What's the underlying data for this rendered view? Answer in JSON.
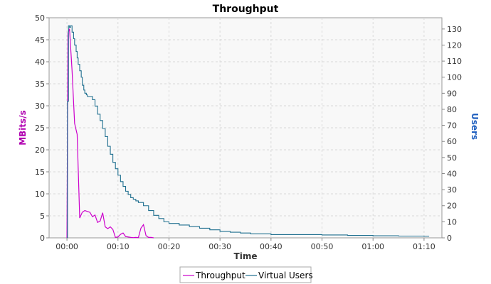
{
  "chart_data": {
    "type": "line",
    "title": "Throughput",
    "xlabel": "Time",
    "ylabel_left": "MBits/s",
    "ylabel_right": "Users",
    "x_unit": "minutes",
    "xlim": [
      -3.5,
      73.5
    ],
    "xticks": [
      "00:00",
      "00:10",
      "00:20",
      "00:30",
      "00:40",
      "00:50",
      "01:00",
      "01:10"
    ],
    "ylim_left": [
      0,
      50
    ],
    "yticks_left": [
      "0",
      "5",
      "10",
      "15",
      "20",
      "25",
      "30",
      "35",
      "40",
      "45",
      "50"
    ],
    "ylim_right": [
      0,
      137
    ],
    "yticks_right": [
      "0",
      "10",
      "20",
      "30",
      "40",
      "50",
      "60",
      "70",
      "80",
      "90",
      "100",
      "110",
      "120",
      "130"
    ],
    "grid": true,
    "legend": "bottom",
    "colors": {
      "throughput": "#cc00cc",
      "users": "#1f6f8f",
      "left_axis_label": "#b000b0",
      "right_axis_label": "#1f5fbf"
    },
    "series": [
      {
        "name": "Throughput",
        "axis": "left",
        "x": [
          0,
          0.2,
          0.5,
          1,
          1.5,
          2,
          2.5,
          3,
          3.5,
          4,
          4.5,
          5,
          5.5,
          6,
          6.5,
          7,
          7.5,
          8,
          8.5,
          9,
          9.5,
          10,
          10.5,
          11,
          11.5,
          12,
          12.5,
          13,
          13.5,
          14,
          14.5,
          15,
          15.5,
          16,
          16.5,
          17
        ],
        "y": [
          0,
          46.5,
          47.5,
          38,
          26,
          23.5,
          4.5,
          5.8,
          6.2,
          6.0,
          5.8,
          4.8,
          5.2,
          3.5,
          3.8,
          5.7,
          2.5,
          2.1,
          2.5,
          1.9,
          0.1,
          0.2,
          0.8,
          1.1,
          0.3,
          0.2,
          0.1,
          0.05,
          0.1,
          0.05,
          2.2,
          3.0,
          0.5,
          0.1,
          0.1,
          0
        ]
      },
      {
        "name": "Virtual Users",
        "axis": "right",
        "x": [
          0,
          0.1,
          0.3,
          0.5,
          0.7,
          1,
          1.3,
          1.5,
          1.8,
          2,
          2.2,
          2.5,
          2.8,
          3,
          3.3,
          3.5,
          3.8,
          4,
          4.5,
          5,
          5.5,
          6,
          6.5,
          7,
          7.5,
          8,
          8.5,
          9,
          9.5,
          10,
          10.5,
          11,
          11.5,
          12,
          12.5,
          13,
          13.5,
          14,
          15,
          16,
          17,
          18,
          19,
          20,
          22,
          24,
          26,
          28,
          30,
          32,
          34,
          36,
          40,
          45,
          50,
          55,
          60,
          65,
          70,
          71
        ],
        "y": [
          0,
          85,
          132,
          131,
          132,
          128,
          124,
          120,
          116,
          112,
          108,
          104,
          100,
          95,
          92,
          90,
          89,
          88,
          88,
          86,
          82,
          77,
          73,
          68,
          63,
          57,
          52,
          47,
          43,
          39,
          35,
          32,
          29,
          27,
          25,
          24,
          23,
          22,
          20,
          17,
          14,
          12,
          10,
          9,
          8,
          7,
          6,
          5,
          4,
          3.5,
          3,
          2.5,
          2,
          2,
          1.8,
          1.5,
          1.3,
          1.1,
          1.0,
          1.0
        ]
      }
    ]
  }
}
